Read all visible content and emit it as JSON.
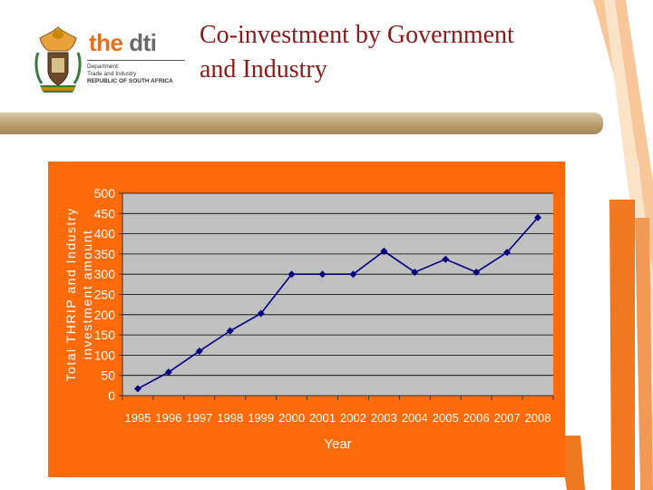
{
  "header": {
    "logo": {
      "the": "the",
      "dti": "dti",
      "dept_line1": "Department:",
      "dept_line2": "Trade and Industry",
      "dept_line3": "REPUBLIC OF SOUTH AFRICA"
    },
    "title_line1": "Co-investment by Government",
    "title_line2": "and Industry"
  },
  "colors": {
    "panel": "#ff6a0a",
    "plot": "#c0c0c0",
    "series": "#000080",
    "title": "#8b1a1a",
    "accent_stripe": "#f07820"
  },
  "chart_data": {
    "type": "line",
    "title": "",
    "xlabel": "Year",
    "ylabel_line1": "Total THRIP and Industry",
    "ylabel_line2": "investment amount",
    "categories": [
      "1995",
      "1996",
      "1997",
      "1998",
      "1999",
      "2000",
      "2001",
      "2002",
      "2003",
      "2004",
      "2005",
      "2006",
      "2007",
      "2008"
    ],
    "series": [
      {
        "values": [
          17,
          58,
          110,
          160,
          203,
          300,
          300,
          300,
          357,
          305,
          337,
          305,
          354,
          440
        ]
      }
    ],
    "ylim": [
      0,
      500
    ],
    "yticks": [
      "0",
      "50",
      "100",
      "150",
      "200",
      "250",
      "300",
      "350",
      "400",
      "450",
      "500"
    ],
    "grid": true,
    "legend": "none",
    "marker": "diamond"
  }
}
